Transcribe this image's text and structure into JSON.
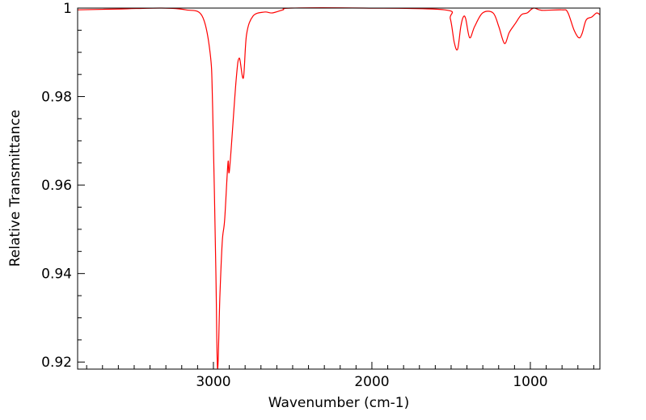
{
  "chart_data": {
    "type": "line",
    "title": "",
    "xlabel": "Wavenumber (cm-1)",
    "ylabel": "Relative Transmittance",
    "xlim": [
      3857,
      561
    ],
    "ylim": [
      0.9184,
      1.0
    ],
    "x_reversed": true,
    "grid": false,
    "x_ticks": [
      3000,
      2000,
      1000
    ],
    "x_tick_labels": [
      "3000",
      "2000",
      "1000"
    ],
    "x_minor_step": 100,
    "y_ticks": [
      0.92,
      0.94,
      0.96,
      0.98,
      1.0
    ],
    "y_tick_labels": [
      "0.92",
      "0.94",
      "0.96",
      "0.98",
      "1"
    ],
    "y_minor_step": 0.005,
    "series": [
      {
        "name": "spectrum",
        "color": "#ff0000",
        "x": [
          3857,
          3582,
          3327,
          3173,
          3071,
          3020,
          3005,
          2985,
          2974,
          2959,
          2944,
          2929,
          2908,
          2898,
          2857,
          2837,
          2811,
          2791,
          2750,
          2679,
          2628,
          2561,
          2510,
          2051,
          1541,
          1505,
          1480,
          1459,
          1439,
          1423,
          1408,
          1383,
          1352,
          1301,
          1235,
          1199,
          1163,
          1133,
          1097,
          1056,
          1020,
          980,
          929,
          801,
          765,
          725,
          694,
          674,
          648,
          612,
          582,
          561
        ],
        "y": [
          0.9996,
          0.9998,
          1.0,
          0.9996,
          0.9982,
          0.9896,
          0.9776,
          0.9413,
          0.9185,
          0.9351,
          0.9473,
          0.9522,
          0.9651,
          0.9636,
          0.9836,
          0.9887,
          0.9842,
          0.994,
          0.9982,
          0.9991,
          0.9989,
          0.9996,
          1.0,
          1.0,
          0.9996,
          0.9976,
          0.9922,
          0.9907,
          0.9958,
          0.998,
          0.9976,
          0.9933,
          0.9958,
          0.9989,
          0.9989,
          0.9958,
          0.992,
          0.9945,
          0.9964,
          0.9985,
          0.9989,
          1.0,
          0.9995,
          0.9996,
          0.9991,
          0.9951,
          0.9933,
          0.9942,
          0.9973,
          0.998,
          0.9989,
          0.9985
        ]
      }
    ]
  }
}
